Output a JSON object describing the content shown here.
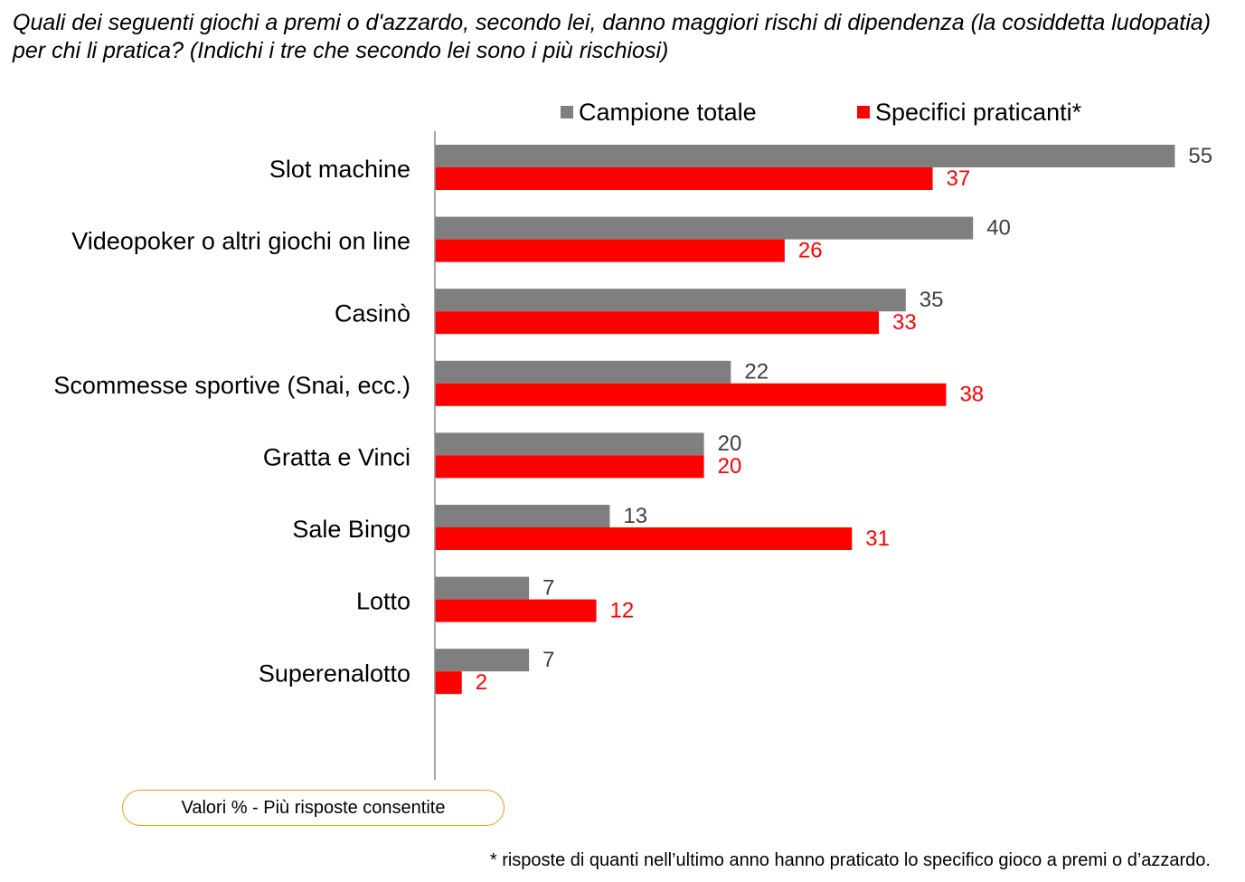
{
  "question": "Quali dei seguenti giochi a premi o d'azzardo, secondo lei, danno maggiori rischi di dipendenza (la cosiddetta ludopatia) per chi li pratica? (Indichi i tre che secondo lei sono i più rischiosi)",
  "note": "Valori % - Più risposte consentite",
  "footnote": "* risposte di quanti nell’ultimo anno hanno praticato lo specifico gioco a premi o d’azzardo.",
  "colors": {
    "series1": "#7f7f7f",
    "series2": "#ff0000",
    "note_border": "#e8a317"
  },
  "chart_data": {
    "type": "bar",
    "orientation": "horizontal",
    "categories": [
      "Slot machine",
      "Videopoker o altri giochi on line",
      "Casinò",
      "Scommesse sportive (Snai, ecc.)",
      "Gratta e Vinci",
      "Sale Bingo",
      "Lotto",
      "Superenalotto"
    ],
    "series": [
      {
        "name": "Campione totale",
        "values": [
          55,
          40,
          35,
          22,
          20,
          13,
          7,
          7
        ]
      },
      {
        "name": "Specifici praticanti*",
        "values": [
          37,
          26,
          33,
          38,
          20,
          31,
          12,
          2
        ]
      }
    ],
    "xlim": [
      0,
      55
    ],
    "grid": false,
    "legend_position": "top-right",
    "data_labels": true
  }
}
